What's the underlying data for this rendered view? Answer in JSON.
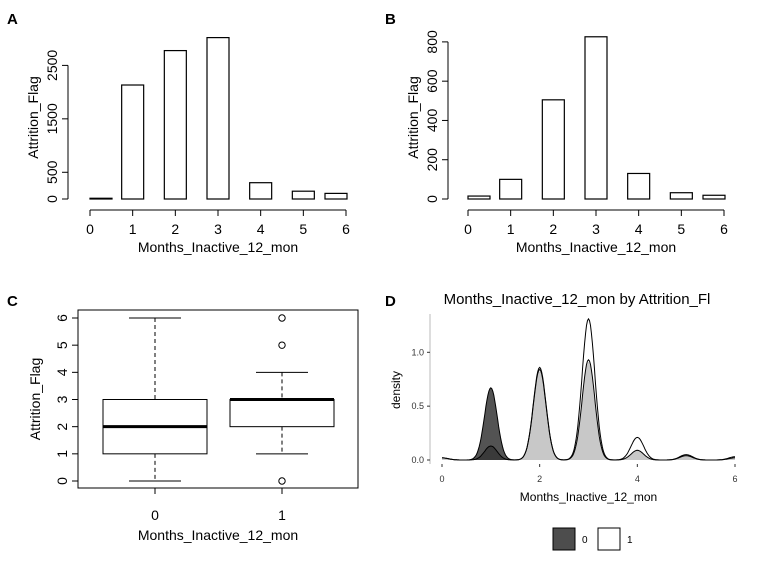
{
  "chart_data": [
    {
      "panel": "A",
      "type": "bar",
      "xlabel": "Months_Inactive_12_mon",
      "ylabel": "Attrition_Flag",
      "x_ticks": [
        0,
        1,
        2,
        3,
        4,
        5,
        6
      ],
      "y_ticks": [
        0,
        500,
        1500,
        2500
      ],
      "xlim": [
        0,
        6
      ],
      "ylim": [
        0,
        3050
      ],
      "x": [
        0,
        1,
        2,
        3,
        4,
        5,
        6
      ],
      "values": [
        14,
        2133,
        2777,
        3020,
        305,
        146,
        105
      ]
    },
    {
      "panel": "B",
      "type": "bar",
      "xlabel": "Months_Inactive_12_mon",
      "ylabel": "Attrition_Flag",
      "x_ticks": [
        0,
        1,
        2,
        3,
        4,
        5,
        6
      ],
      "y_ticks": [
        0,
        200,
        400,
        600,
        800
      ],
      "xlim": [
        0,
        6
      ],
      "ylim": [
        0,
        830
      ],
      "x": [
        0,
        1,
        2,
        3,
        4,
        5,
        6
      ],
      "values": [
        15,
        100,
        505,
        826,
        130,
        32,
        19
      ]
    },
    {
      "panel": "C",
      "type": "boxplot",
      "xlabel": "Months_Inactive_12_mon",
      "ylabel": "Attrition_Flag",
      "categories": [
        "0",
        "1"
      ],
      "y_ticks": [
        0,
        1,
        2,
        3,
        4,
        5,
        6
      ],
      "ylim": [
        0,
        6
      ],
      "boxes": [
        {
          "category": "0",
          "min": 0,
          "q1": 1,
          "median": 2,
          "q3": 3,
          "max": 6,
          "outliers": []
        },
        {
          "category": "1",
          "min": 1,
          "q1": 2,
          "median": 3,
          "q3": 3,
          "max": 4,
          "outliers": [
            0,
            5,
            6
          ]
        }
      ]
    },
    {
      "panel": "D",
      "type": "area",
      "title": "Months_Inactive_12_mon  by  Attrition_Fl",
      "xlabel": "Months_Inactive_12_mon",
      "ylabel": "density",
      "x_ticks": [
        "0",
        "2",
        "4",
        "6"
      ],
      "y_ticks": [
        "0.0",
        "0.5",
        "1.0"
      ],
      "xlim": [
        0,
        6
      ],
      "ylim": [
        0,
        1.3
      ],
      "legend": {
        "position": "bottom",
        "entries": [
          "0",
          "1"
        ]
      },
      "series": [
        {
          "name": "0",
          "color": "#4d4d4d",
          "peaks": [
            [
              0,
              0.02
            ],
            [
              1,
              0.67
            ],
            [
              2,
              0.84
            ],
            [
              3,
              0.93
            ],
            [
              4,
              0.09
            ],
            [
              5,
              0.04
            ],
            [
              6,
              0.02
            ]
          ]
        },
        {
          "name": "1",
          "color": "#ffffff",
          "peaks": [
            [
              0,
              0.02
            ],
            [
              1,
              0.13
            ],
            [
              2,
              0.86
            ],
            [
              3,
              1.31
            ],
            [
              4,
              0.21
            ],
            [
              5,
              0.05
            ],
            [
              6,
              0.03
            ]
          ]
        }
      ]
    }
  ],
  "labels": {
    "A": "A",
    "B": "B",
    "C": "C",
    "D": "D"
  }
}
